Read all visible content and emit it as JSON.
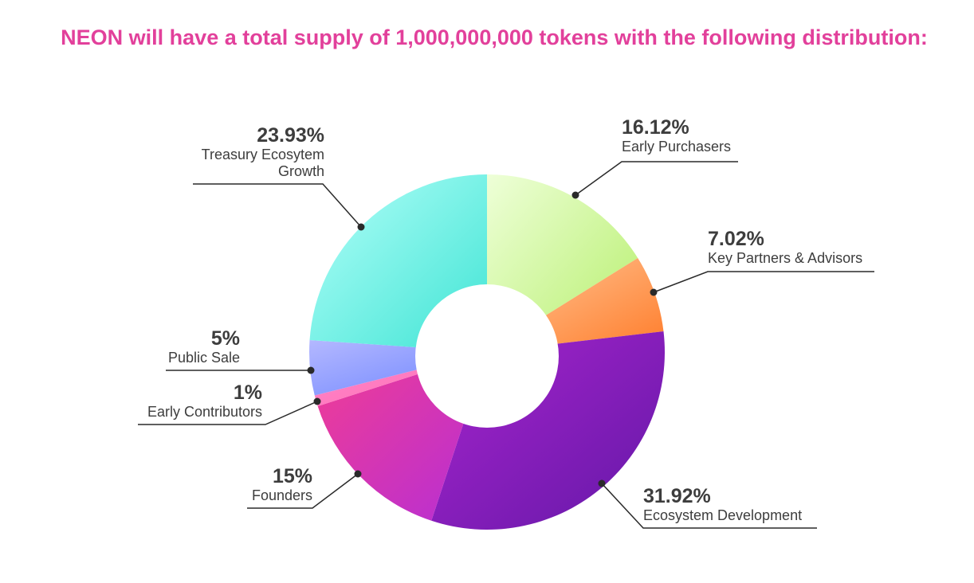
{
  "title": "NEON will have a total supply of 1,000,000,000 tokens with the following distribution:",
  "title_color": "#e2409b",
  "chart_data": {
    "type": "pie",
    "donut": true,
    "start": "top",
    "direction": "clockwise",
    "slices": [
      {
        "name": "Early Purchasers",
        "label_lines": [
          "Early Purchasers"
        ],
        "value": 16.12,
        "value_label": "16.12%",
        "colors": [
          "#eeffd8",
          "#b6ef6c"
        ]
      },
      {
        "name": "Key Partners & Advisors",
        "label_lines": [
          "Key Partners & Advisors"
        ],
        "value": 7.02,
        "value_label": "7.02%",
        "colors": [
          "#ffc89a",
          "#ff7c2a"
        ]
      },
      {
        "name": "Ecosystem Development",
        "label_lines": [
          "Ecosystem Development"
        ],
        "value": 31.92,
        "value_label": "31.92%",
        "colors": [
          "#a724cc",
          "#6418a8"
        ]
      },
      {
        "name": "Founders",
        "label_lines": [
          "Founders"
        ],
        "value": 15,
        "value_label": "15%",
        "colors": [
          "#f23d93",
          "#b52ed6"
        ]
      },
      {
        "name": "Early Contributors",
        "label_lines": [
          "Early Contributors"
        ],
        "value": 1,
        "value_label": "1%",
        "colors": [
          "#ff8ac8",
          "#ff6cb8"
        ]
      },
      {
        "name": "Public Sale",
        "label_lines": [
          "Public Sale"
        ],
        "value": 5,
        "value_label": "5%",
        "colors": [
          "#b4b8ff",
          "#6c84ff"
        ]
      },
      {
        "name": "Treasury Ecosytem Growth",
        "label_lines": [
          "Treasury Ecosytem",
          "Growth"
        ],
        "value": 23.93,
        "value_label": "23.93%",
        "colors": [
          "#b4fff9",
          "#3fe4d4"
        ]
      }
    ]
  }
}
